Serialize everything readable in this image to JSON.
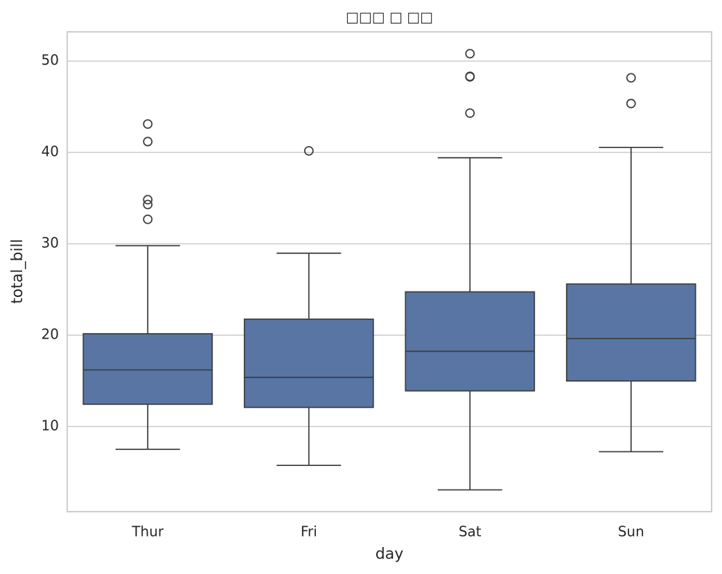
{
  "chart_data": {
    "type": "box",
    "title": "□□□ □ □□",
    "x_label": "day",
    "y_label": "total_bill",
    "categories": [
      "Thur",
      "Fri",
      "Sat",
      "Sun"
    ],
    "color": "#5875a4",
    "line_color": "#3f3f3f",
    "boxes": [
      {
        "low": 7.51,
        "q1": 12.4425,
        "median": 16.2,
        "q3": 20.155,
        "high": 29.8,
        "outliers": [
          32.68,
          34.3,
          34.83,
          41.19,
          43.11
        ]
      },
      {
        "low": 5.75,
        "q1": 12.095,
        "median": 15.38,
        "q3": 21.75,
        "high": 28.97,
        "outliers": [
          40.17
        ]
      },
      {
        "low": 3.07,
        "q1": 13.905,
        "median": 18.24,
        "q3": 24.74,
        "high": 39.42,
        "outliers": [
          44.3,
          48.27,
          48.33,
          50.81
        ]
      },
      {
        "low": 7.25,
        "q1": 14.9875,
        "median": 19.63,
        "q3": 25.5975,
        "high": 40.55,
        "outliers": [
          45.35,
          48.17
        ]
      }
    ],
    "ylim": [
      0.683,
      53.197
    ],
    "yticks": [
      10,
      20,
      30,
      40,
      50
    ],
    "grid": true
  }
}
